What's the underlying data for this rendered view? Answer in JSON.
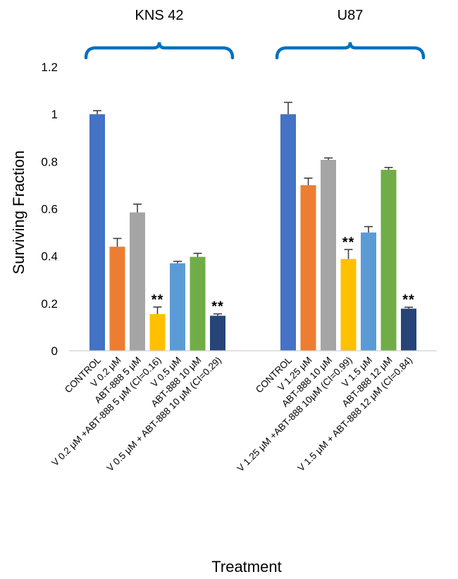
{
  "chart_data": {
    "type": "bar",
    "title": "",
    "xlabel": "Treatment",
    "ylabel": "Surviving Fraction",
    "ylim": [
      0,
      1.2
    ],
    "yticks": [
      0,
      0.2,
      0.4,
      0.6,
      0.8,
      1,
      1.2
    ],
    "ytick_labels": [
      "0",
      "0.2",
      "0.4",
      "0.6",
      "0.8",
      "1",
      "1.2"
    ],
    "grid": false,
    "groups": [
      {
        "name": "KNS 42",
        "bars": [
          {
            "label": "CONTROL",
            "value": 1.0,
            "error": 0.015,
            "color": "#4472C4",
            "annotation": ""
          },
          {
            "label": "V 0.2 μM",
            "value": 0.44,
            "error": 0.035,
            "color": "#ED7D31",
            "annotation": ""
          },
          {
            "label": "ABT-888 5 μM",
            "value": 0.585,
            "error": 0.035,
            "color": "#A5A5A5",
            "annotation": ""
          },
          {
            "label": "V 0.2 μM +ABT-888 5 μM (CI=0.16)",
            "value": 0.155,
            "error": 0.03,
            "color": "#FFC000",
            "annotation": "**"
          },
          {
            "label": "V 0.5 μM",
            "value": 0.37,
            "error": 0.008,
            "color": "#5B9BD5",
            "annotation": ""
          },
          {
            "label": "ABT-888 10 μM",
            "value": 0.397,
            "error": 0.015,
            "color": "#70AD47",
            "annotation": ""
          },
          {
            "label": "V 0.5 μM + ABT-888 10 μM (CI=0.29)",
            "value": 0.148,
            "error": 0.008,
            "color": "#264478",
            "annotation": "**"
          }
        ]
      },
      {
        "name": "U87",
        "bars": [
          {
            "label": "CONTROL",
            "value": 1.0,
            "error": 0.05,
            "color": "#4472C4",
            "annotation": ""
          },
          {
            "label": "V 1.25 μM",
            "value": 0.7,
            "error": 0.03,
            "color": "#ED7D31",
            "annotation": ""
          },
          {
            "label": "ABT-888 10 μM",
            "value": 0.807,
            "error": 0.008,
            "color": "#A5A5A5",
            "annotation": ""
          },
          {
            "label": "V 1.25 μM +ABT-888 10μM (CI=0.99)",
            "value": 0.388,
            "error": 0.04,
            "color": "#FFC000",
            "annotation": "**"
          },
          {
            "label": "V 1.5 μM",
            "value": 0.5,
            "error": 0.025,
            "color": "#5B9BD5",
            "annotation": ""
          },
          {
            "label": "ABT-888 12 μM",
            "value": 0.765,
            "error": 0.01,
            "color": "#70AD47",
            "annotation": ""
          },
          {
            "label": "V 1.5 μM + ABT-888 12 μM (CI=0.84)",
            "value": 0.178,
            "error": 0.006,
            "color": "#264478",
            "annotation": "**"
          }
        ]
      }
    ],
    "bracket_color": "#0070C0",
    "error_bar_color": "#404040"
  }
}
